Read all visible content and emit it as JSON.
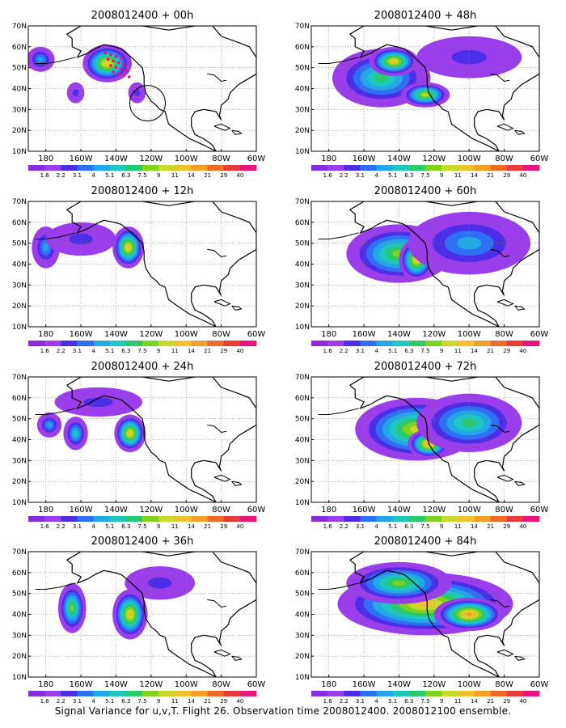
{
  "caption": "Signal Variance for u,v,T. Flight 26. Observation time 2008012400. 2008012100 ensemble.",
  "panels": [
    {
      "title": "2008012400 + 00h"
    },
    {
      "title": "2008012400 + 48h"
    },
    {
      "title": "2008012400 + 12h"
    },
    {
      "title": "2008012400 + 60h"
    },
    {
      "title": "2008012400 + 24h"
    },
    {
      "title": "2008012400 + 72h"
    },
    {
      "title": "2008012400 + 36h"
    },
    {
      "title": "2008012400 + 84h"
    }
  ],
  "colorbar": {
    "labels": [
      "1.6",
      "2.2",
      "3.1",
      "4",
      "5.1",
      "6.3",
      "7.5",
      "9",
      "11",
      "14",
      "21",
      "29",
      "40"
    ],
    "colors": [
      "#8a2be2",
      "#9a3dea",
      "#4b2ee6",
      "#2f6ff5",
      "#22a7e8",
      "#1ec8c0",
      "#2ac96a",
      "#7ed321",
      "#c8d92a",
      "#f2c12e",
      "#f0a02a",
      "#ee6a2a",
      "#e83b3b",
      "#e8157f"
    ]
  },
  "axes": {
    "x_ticks": [
      "180",
      "160W",
      "140W",
      "120W",
      "100W",
      "80W",
      "60W"
    ],
    "y_ticks": [
      "10N",
      "20N",
      "30N",
      "40N",
      "50N",
      "60N",
      "70N"
    ]
  },
  "chart_data": {
    "type": "heatmap",
    "lon_range": [
      -190,
      -60
    ],
    "lat_range": [
      10,
      70
    ],
    "color_levels": [
      1.6,
      2.2,
      3.1,
      4,
      5.1,
      6.3,
      7.5,
      9,
      11,
      14,
      21,
      29,
      40
    ],
    "series": [
      {
        "name": "2008012400 + 00h",
        "blobs": [
          {
            "lon": -145,
            "lat": 52,
            "rx": 14,
            "ry": 9,
            "value": 11
          },
          {
            "lon": -183,
            "lat": 54,
            "rx": 8,
            "ry": 6,
            "value": 5
          },
          {
            "lon": -163,
            "lat": 38,
            "rx": 5,
            "ry": 5,
            "value": 2.5
          },
          {
            "lon": -128,
            "lat": 38,
            "rx": 5,
            "ry": 5,
            "value": 2.2
          }
        ]
      },
      {
        "name": "2008012400 + 48h",
        "blobs": [
          {
            "lon": -150,
            "lat": 45,
            "rx": 28,
            "ry": 14,
            "value": 7
          },
          {
            "lon": -143,
            "lat": 53,
            "rx": 14,
            "ry": 7,
            "value": 12
          },
          {
            "lon": -125,
            "lat": 37,
            "rx": 14,
            "ry": 6,
            "value": 9
          },
          {
            "lon": -100,
            "lat": 55,
            "rx": 30,
            "ry": 10,
            "value": 3
          }
        ]
      },
      {
        "name": "2008012400 + 12h",
        "blobs": [
          {
            "lon": -133,
            "lat": 48,
            "rx": 9,
            "ry": 10,
            "value": 12
          },
          {
            "lon": -180,
            "lat": 48,
            "rx": 8,
            "ry": 10,
            "value": 4
          },
          {
            "lon": -160,
            "lat": 52,
            "rx": 20,
            "ry": 8,
            "value": 2.5
          }
        ]
      },
      {
        "name": "2008012400 + 60h",
        "blobs": [
          {
            "lon": -140,
            "lat": 45,
            "rx": 30,
            "ry": 14,
            "value": 8
          },
          {
            "lon": -130,
            "lat": 42,
            "rx": 10,
            "ry": 10,
            "value": 13
          },
          {
            "lon": -100,
            "lat": 50,
            "rx": 35,
            "ry": 15,
            "value": 4
          }
        ]
      },
      {
        "name": "2008012400 + 24h",
        "blobs": [
          {
            "lon": -132,
            "lat": 43,
            "rx": 9,
            "ry": 9,
            "value": 13
          },
          {
            "lon": -163,
            "lat": 43,
            "rx": 7,
            "ry": 8,
            "value": 6
          },
          {
            "lon": -178,
            "lat": 47,
            "rx": 7,
            "ry": 6,
            "value": 4
          },
          {
            "lon": -150,
            "lat": 58,
            "rx": 25,
            "ry": 7,
            "value": 3
          }
        ]
      },
      {
        "name": "2008012400 + 72h",
        "blobs": [
          {
            "lon": -130,
            "lat": 45,
            "rx": 35,
            "ry": 15,
            "value": 9
          },
          {
            "lon": -123,
            "lat": 38,
            "rx": 12,
            "ry": 7,
            "value": 14
          },
          {
            "lon": -100,
            "lat": 48,
            "rx": 30,
            "ry": 14,
            "value": 7
          }
        ]
      },
      {
        "name": "2008012400 + 36h",
        "blobs": [
          {
            "lon": -132,
            "lat": 40,
            "rx": 10,
            "ry": 12,
            "value": 12
          },
          {
            "lon": -165,
            "lat": 43,
            "rx": 8,
            "ry": 12,
            "value": 8
          },
          {
            "lon": -115,
            "lat": 55,
            "rx": 20,
            "ry": 8,
            "value": 3
          }
        ]
      },
      {
        "name": "2008012400 + 84h",
        "blobs": [
          {
            "lon": -125,
            "lat": 45,
            "rx": 50,
            "ry": 15,
            "value": 11
          },
          {
            "lon": -100,
            "lat": 40,
            "rx": 20,
            "ry": 8,
            "value": 14
          },
          {
            "lon": -140,
            "lat": 55,
            "rx": 30,
            "ry": 10,
            "value": 8
          }
        ]
      }
    ]
  }
}
